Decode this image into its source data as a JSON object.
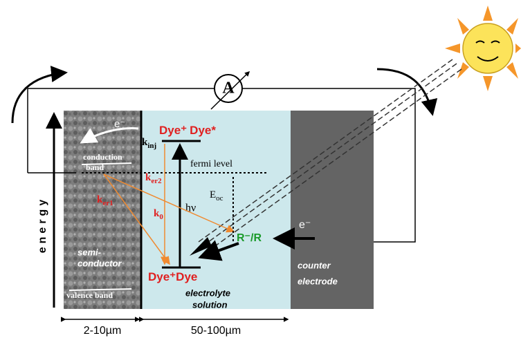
{
  "axis": {
    "label": "energy"
  },
  "semiconductor": {
    "electron": "e⁻",
    "conduction_band": [
      "conduction",
      "band"
    ],
    "label": [
      "semi-",
      "conductor"
    ],
    "valence_band": "valence band"
  },
  "dye": {
    "excited": [
      "Dye⁺",
      "Dye*"
    ],
    "ground": [
      "Dye⁺",
      "Dye"
    ]
  },
  "rates": {
    "kinj": {
      "main": "k",
      "sub": "inj"
    },
    "ker2": {
      "main": "k",
      "sub": "er2"
    },
    "ker1": {
      "main": "k",
      "sub": "er1"
    },
    "k0": {
      "main": "k",
      "sub": "0"
    }
  },
  "fermi_level": "fermi level",
  "eoc": {
    "main": "E",
    "sub": "oc"
  },
  "photon": "hν",
  "redox": "R⁻/R",
  "electrolyte": [
    "electrolyte",
    "solution"
  ],
  "counter": {
    "electron": "e⁻",
    "label": [
      "counter",
      "electrode"
    ]
  },
  "ammeter": "A",
  "dimensions": [
    "2-10µm",
    "50-100µm"
  ]
}
